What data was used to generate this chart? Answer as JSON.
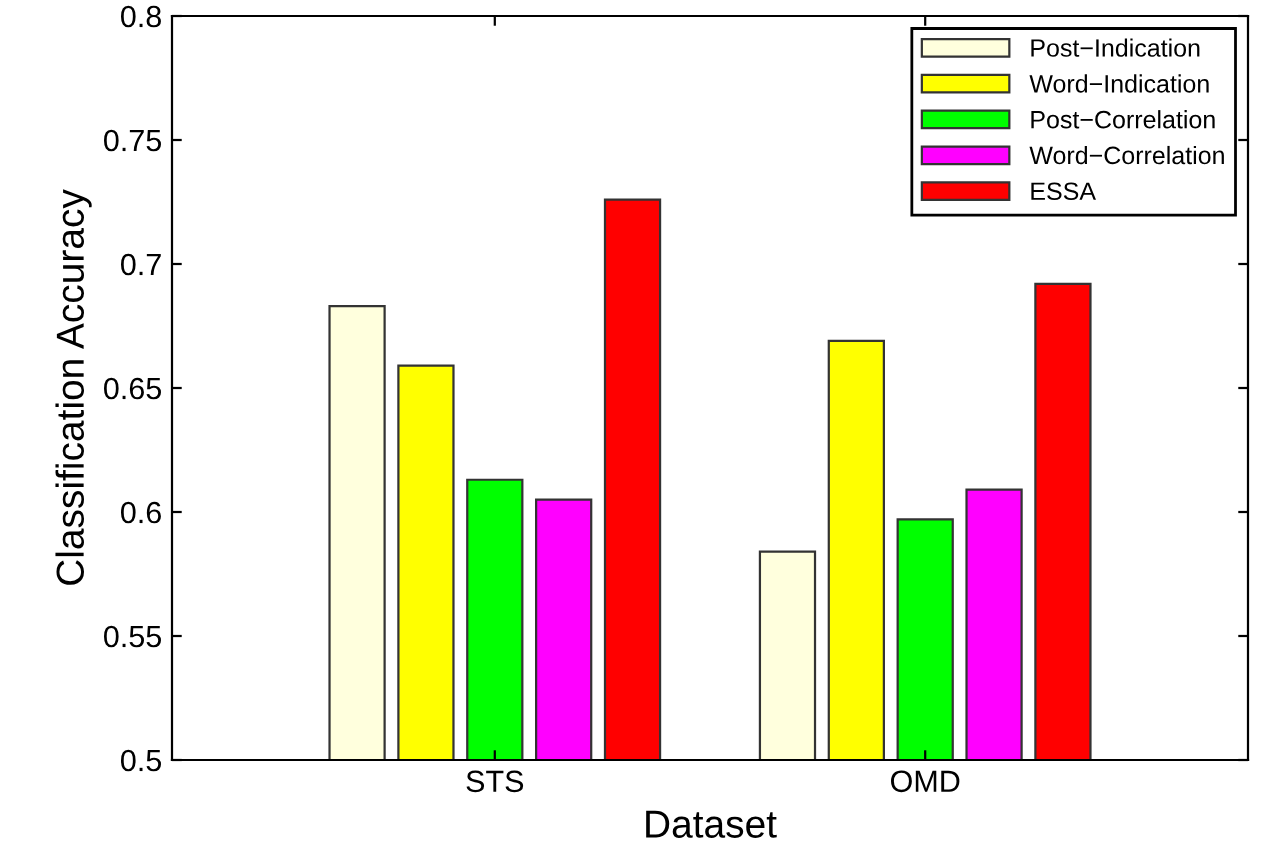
{
  "chart_data": {
    "type": "bar",
    "xlabel": "Dataset",
    "ylabel": "Classification Accuracy",
    "categories": [
      "STS",
      "OMD"
    ],
    "series": [
      {
        "name": "Post−Indication",
        "color": "#ffffdd",
        "values": [
          0.683,
          0.584
        ]
      },
      {
        "name": "Word−Indication",
        "color": "#ffff00",
        "values": [
          0.659,
          0.669
        ]
      },
      {
        "name": "Post−Correlation",
        "color": "#00ff00",
        "values": [
          0.613,
          0.597
        ]
      },
      {
        "name": "Word−Correlation",
        "color": "#ff00ff",
        "values": [
          0.605,
          0.609
        ]
      },
      {
        "name": "ESSA",
        "color": "#ff0000",
        "values": [
          0.726,
          0.692
        ]
      }
    ],
    "ylim": [
      0.5,
      0.8
    ],
    "yticks": [
      0.5,
      0.55,
      0.6,
      0.65,
      0.7,
      0.75,
      0.8
    ],
    "grid": false,
    "legend": "top right"
  }
}
